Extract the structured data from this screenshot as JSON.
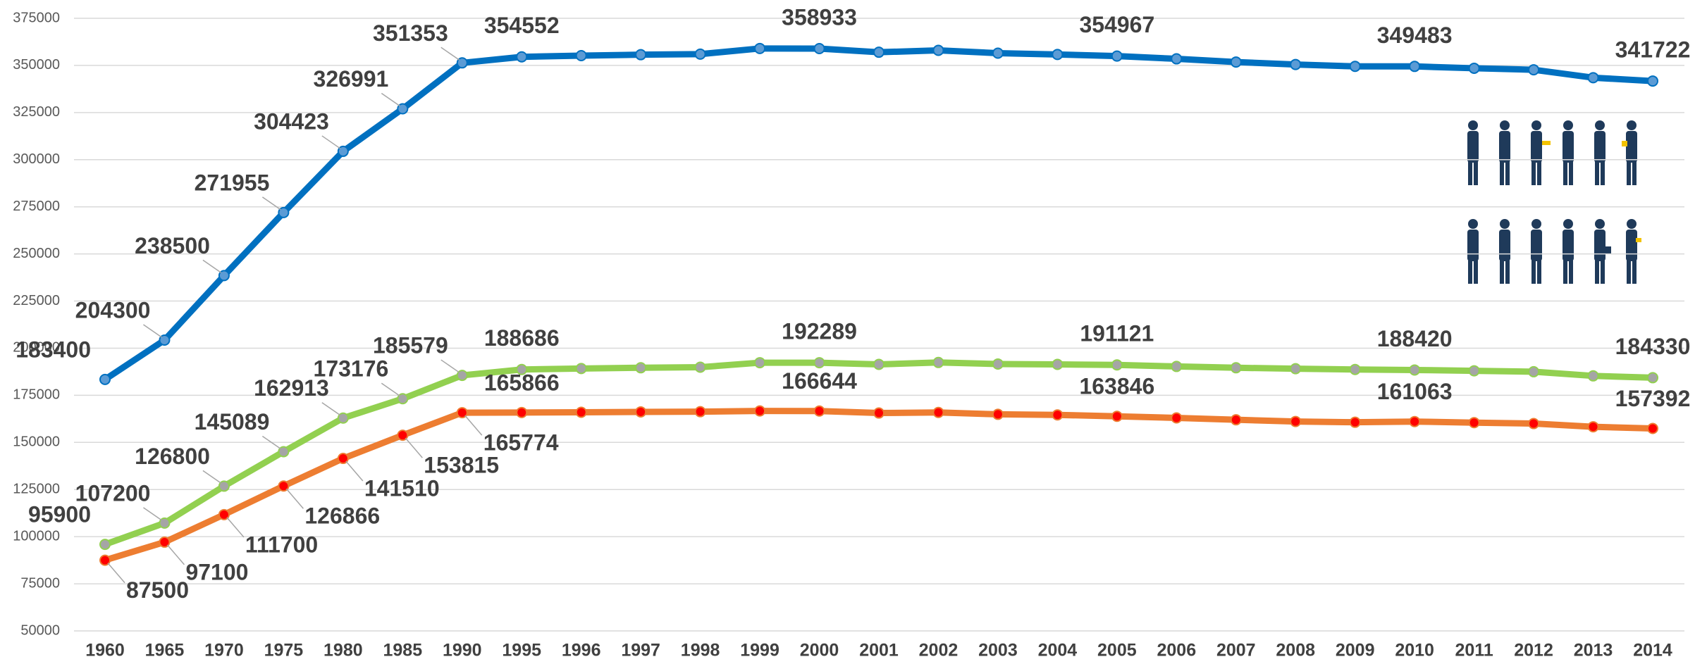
{
  "chart_data": {
    "type": "line",
    "categories": [
      "1960",
      "1965",
      "1970",
      "1975",
      "1980",
      "1985",
      "1990",
      "1995",
      "1996",
      "1997",
      "1998",
      "1999",
      "2000",
      "2001",
      "2002",
      "2003",
      "2004",
      "2005",
      "2006",
      "2007",
      "2008",
      "2009",
      "2010",
      "2011",
      "2012",
      "2013",
      "2014"
    ],
    "series": [
      {
        "color": "#0070c0",
        "marker_color": "#5b9bd5",
        "values": [
          183400,
          204300,
          238500,
          271955,
          304423,
          326991,
          351353,
          354552,
          355200,
          355700,
          356000,
          359000,
          358933,
          357000,
          358000,
          356500,
          355800,
          354967,
          353500,
          351800,
          350500,
          349500,
          349483,
          348500,
          347700,
          343500,
          341722
        ],
        "value_labels": [
          "183400",
          "204300",
          "238500",
          "271955",
          "304423",
          "326991",
          "351353",
          "354552",
          null,
          null,
          null,
          null,
          "358933",
          null,
          null,
          null,
          null,
          "354967",
          null,
          null,
          null,
          null,
          "349483",
          null,
          null,
          null,
          "341722"
        ]
      },
      {
        "color": "#92d050",
        "marker_color": "#a5a5a5",
        "values": [
          95900,
          107200,
          126800,
          145089,
          162913,
          173176,
          185579,
          188686,
          189200,
          189600,
          189900,
          192300,
          192289,
          191400,
          192400,
          191600,
          191400,
          191121,
          190300,
          189600,
          189100,
          188700,
          188420,
          188000,
          187500,
          185300,
          184330
        ],
        "value_labels": [
          "95900",
          "107200",
          "126800",
          "145089",
          "162913",
          "173176",
          "185579",
          "188686",
          null,
          null,
          null,
          null,
          "192289",
          null,
          null,
          null,
          null,
          "191121",
          null,
          null,
          null,
          null,
          "188420",
          null,
          null,
          null,
          "184330"
        ]
      },
      {
        "color": "#ed7d31",
        "marker_color": "#ff0000",
        "values": [
          87500,
          97100,
          111700,
          126866,
          141510,
          153815,
          165774,
          165866,
          166000,
          166200,
          166300,
          166700,
          166644,
          165600,
          165900,
          164900,
          164600,
          163846,
          163000,
          162000,
          161100,
          160700,
          161063,
          160500,
          160000,
          158300,
          157392
        ],
        "value_labels": [
          "87500",
          "97100",
          "111700",
          "126866",
          "141510",
          "153815",
          "165774",
          "165866",
          null,
          null,
          null,
          null,
          "166644",
          null,
          null,
          null,
          null,
          "163846",
          null,
          null,
          null,
          null,
          "161063",
          null,
          null,
          null,
          "157392"
        ]
      }
    ],
    "ylim": [
      50000,
      375000
    ],
    "yticks": [
      50000,
      75000,
      100000,
      125000,
      150000,
      175000,
      200000,
      225000,
      250000,
      275000,
      300000,
      325000,
      350000,
      375000
    ],
    "grid": true
  }
}
